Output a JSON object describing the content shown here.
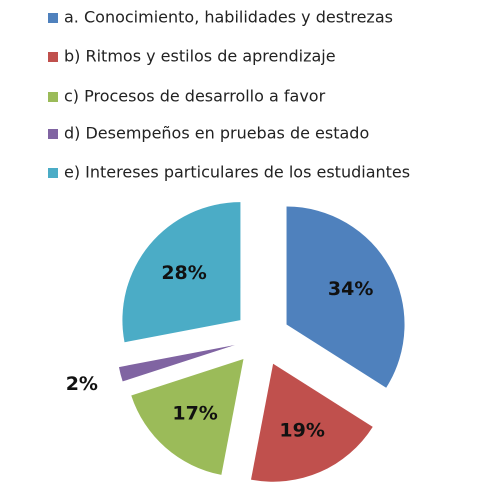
{
  "chart_data": {
    "type": "pie",
    "categories": [
      "a.  Conocimiento, habilidades y destrezas",
      "b) Ritmos y estilos de aprendizaje",
      "c) Procesos de desarrollo a favor",
      "d) Desempeños en pruebas de estado",
      "e) Intereses particulares de los estudiantes"
    ],
    "values": [
      34,
      19,
      17,
      2,
      28
    ],
    "value_labels": [
      "34%",
      "19%",
      "17%",
      "2%",
      "28%"
    ],
    "colors": [
      "#4f81bd",
      "#c0504d",
      "#9bbb59",
      "#8064a2",
      "#4bacc6"
    ]
  }
}
